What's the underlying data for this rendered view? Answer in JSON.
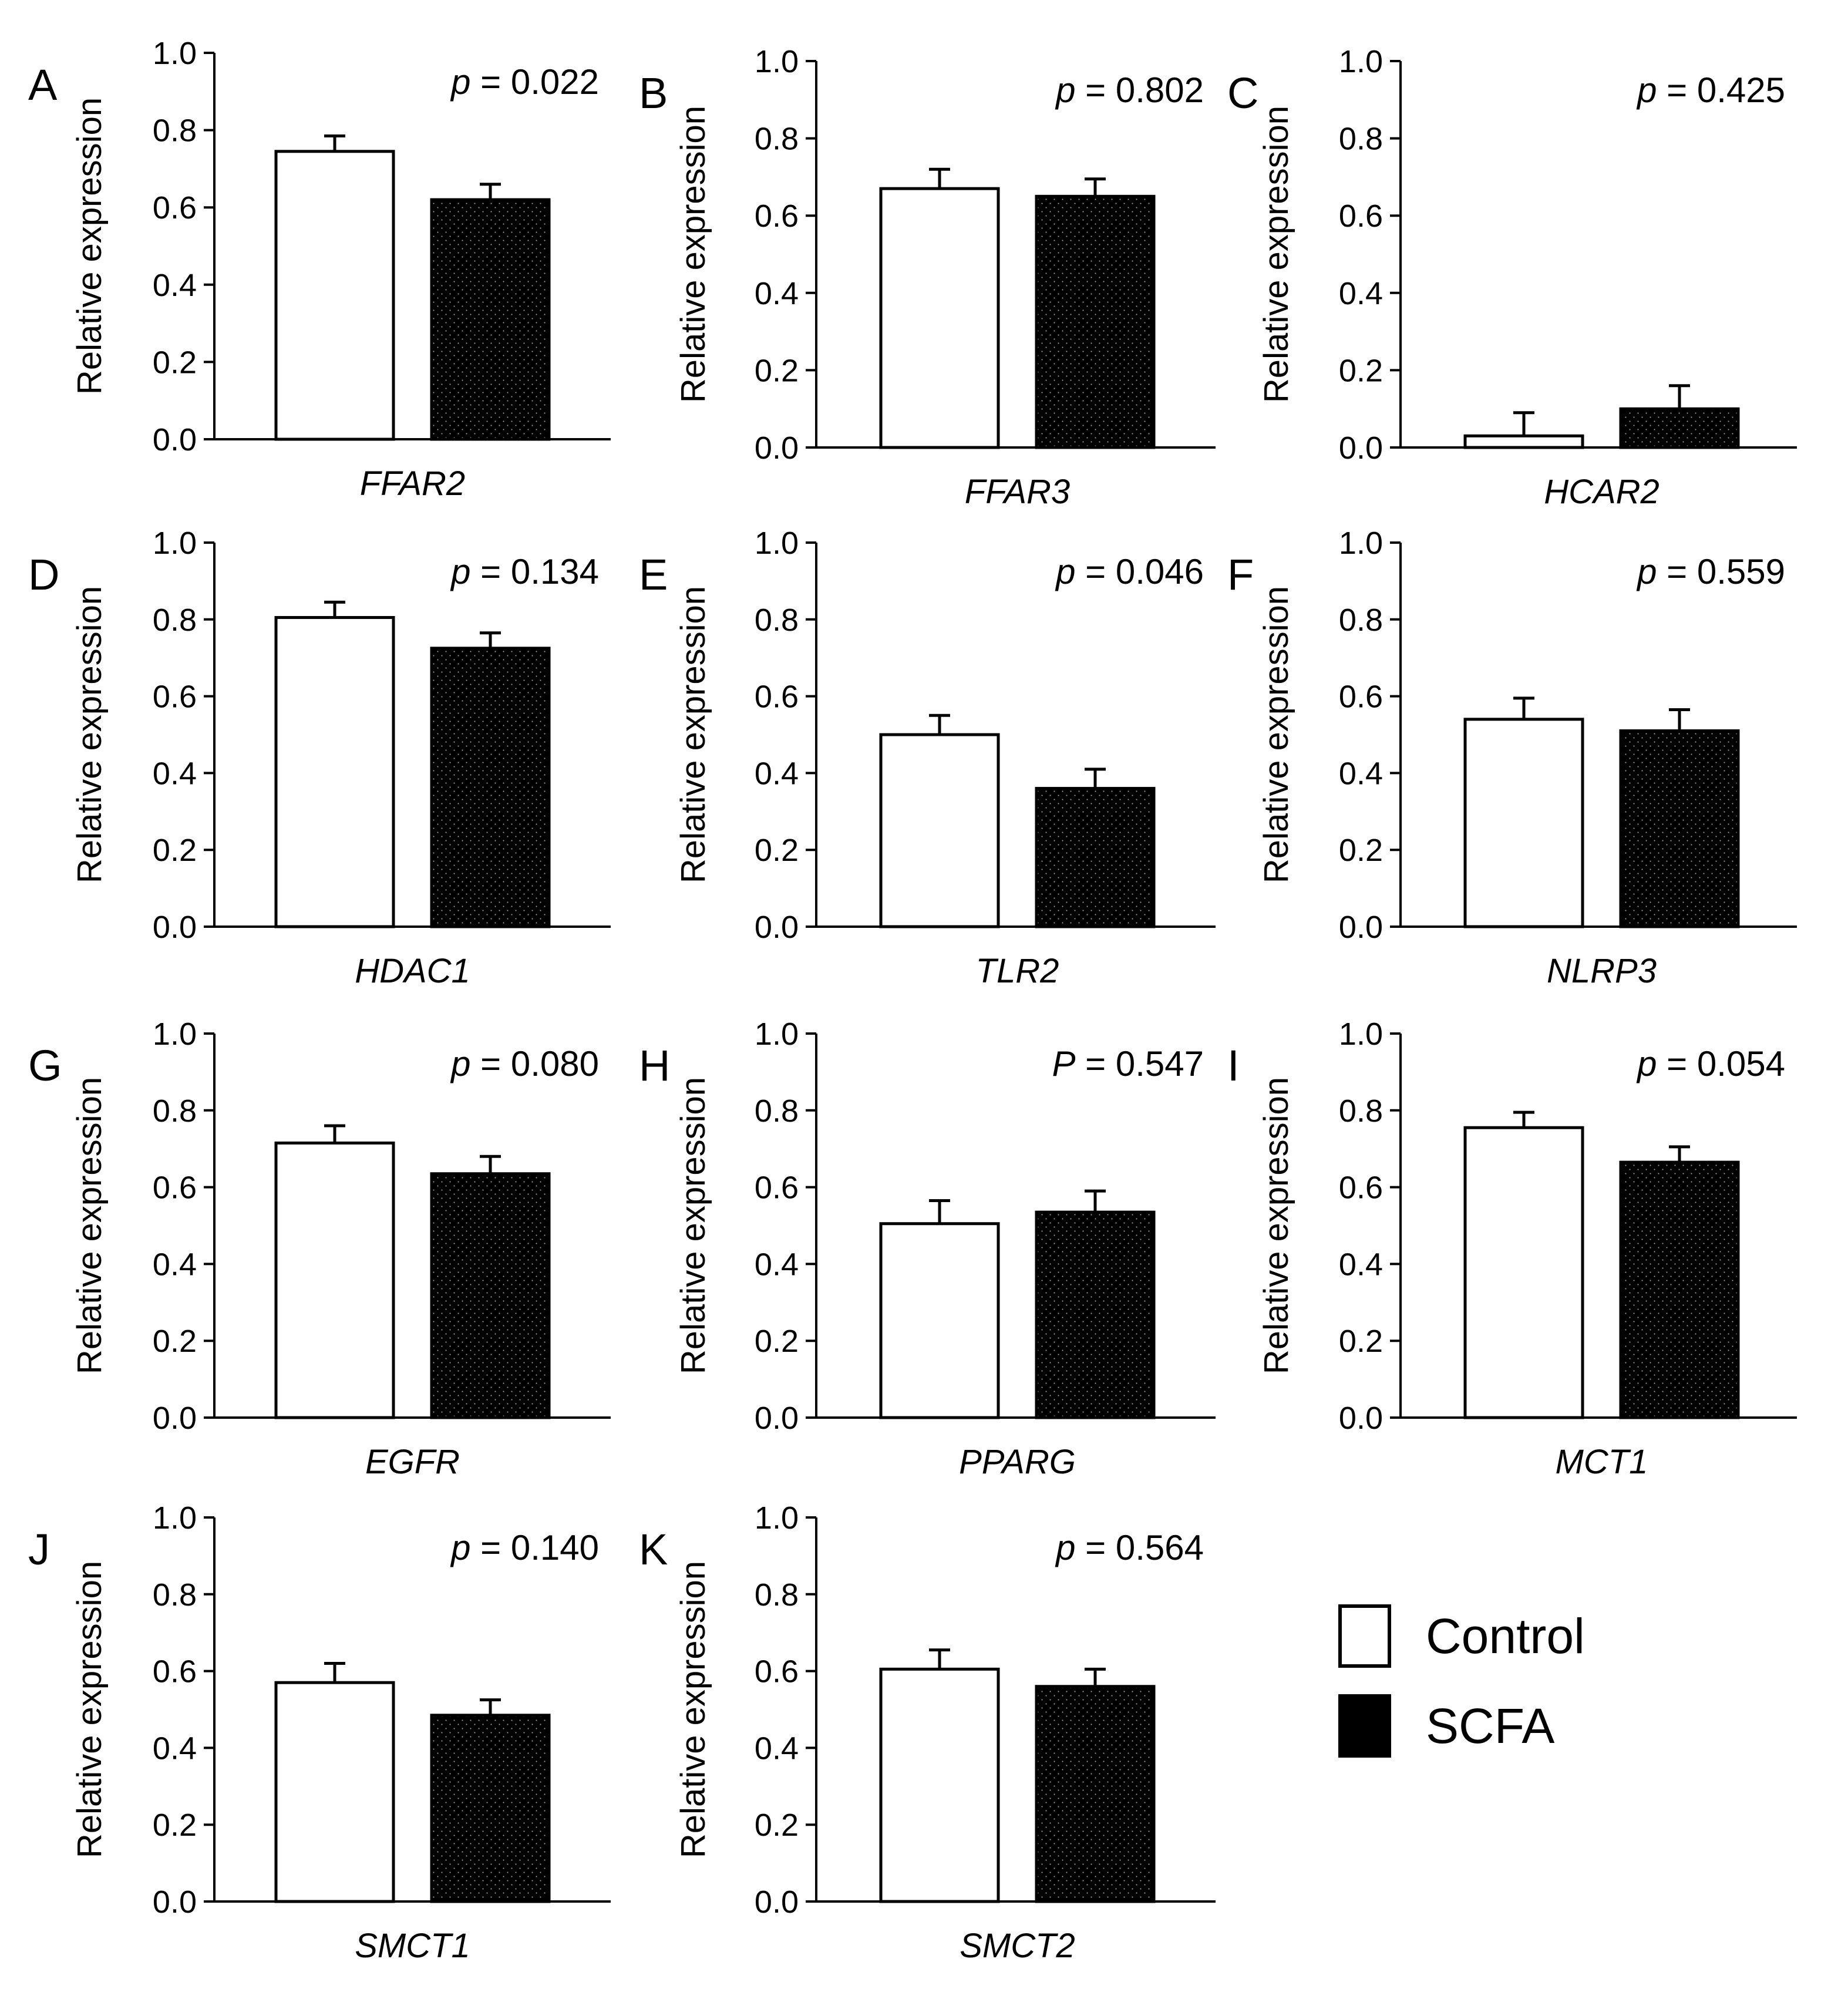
{
  "figure": {
    "series": [
      {
        "name": "Control",
        "color": "#ffffff"
      },
      {
        "name": "SCFA",
        "color": "#000000"
      }
    ],
    "legend": {
      "position": "bottom-right",
      "items": [
        "Control",
        "SCFA"
      ]
    },
    "ylabel": "Relative expression",
    "yticks": [
      "0.0",
      "0.2",
      "0.4",
      "0.6",
      "0.8",
      "1.0"
    ]
  },
  "chart_data": [
    {
      "panel": "A",
      "type": "bar",
      "title": "",
      "xlabel": "FFAR2",
      "ylabel": "Relative expression",
      "ylim": [
        0,
        1.0
      ],
      "p_prefix": "p",
      "p_value": "= 0.022",
      "series": [
        {
          "name": "Control",
          "values": [
            0.745
          ],
          "error": [
            0.04
          ]
        },
        {
          "name": "SCFA",
          "values": [
            0.62
          ],
          "error": [
            0.04
          ]
        }
      ]
    },
    {
      "panel": "B",
      "type": "bar",
      "title": "",
      "xlabel": "FFAR3",
      "ylabel": "Relative expression",
      "ylim": [
        0,
        1.0
      ],
      "p_prefix": "p",
      "p_value": "= 0.802",
      "series": [
        {
          "name": "Control",
          "values": [
            0.67
          ],
          "error": [
            0.05
          ]
        },
        {
          "name": "SCFA",
          "values": [
            0.65
          ],
          "error": [
            0.045
          ]
        }
      ]
    },
    {
      "panel": "C",
      "type": "bar",
      "title": "",
      "xlabel": "HCAR2",
      "ylabel": "Relative expression",
      "ylim": [
        0,
        1.0
      ],
      "p_prefix": "p",
      "p_value": "= 0.425",
      "series": [
        {
          "name": "Control",
          "values": [
            0.03
          ],
          "error": [
            0.06
          ]
        },
        {
          "name": "SCFA",
          "values": [
            0.1
          ],
          "error": [
            0.06
          ]
        }
      ]
    },
    {
      "panel": "D",
      "type": "bar",
      "title": "",
      "xlabel": "HDAC1",
      "ylabel": "Relative expression",
      "ylim": [
        0,
        1.0
      ],
      "p_prefix": "p",
      "p_value": "= 0.134",
      "series": [
        {
          "name": "Control",
          "values": [
            0.805
          ],
          "error": [
            0.04
          ]
        },
        {
          "name": "SCFA",
          "values": [
            0.725
          ],
          "error": [
            0.04
          ]
        }
      ]
    },
    {
      "panel": "E",
      "type": "bar",
      "title": "",
      "xlabel": "TLR2",
      "ylabel": "Relative expression",
      "ylim": [
        0,
        1.0
      ],
      "p_prefix": "p",
      "p_value": "= 0.046",
      "series": [
        {
          "name": "Control",
          "values": [
            0.5
          ],
          "error": [
            0.05
          ]
        },
        {
          "name": "SCFA",
          "values": [
            0.36
          ],
          "error": [
            0.05
          ]
        }
      ]
    },
    {
      "panel": "F",
      "type": "bar",
      "title": "",
      "xlabel": "NLRP3",
      "ylabel": "Relative expression",
      "ylim": [
        0,
        1.0
      ],
      "p_prefix": "p",
      "p_value": "= 0.559",
      "series": [
        {
          "name": "Control",
          "values": [
            0.54
          ],
          "error": [
            0.055
          ]
        },
        {
          "name": "SCFA",
          "values": [
            0.51
          ],
          "error": [
            0.055
          ]
        }
      ]
    },
    {
      "panel": "G",
      "type": "bar",
      "title": "",
      "xlabel": "EGFR",
      "ylabel": "Relative expression",
      "ylim": [
        0,
        1.0
      ],
      "p_prefix": "p",
      "p_value": "= 0.080",
      "series": [
        {
          "name": "Control",
          "values": [
            0.715
          ],
          "error": [
            0.045
          ]
        },
        {
          "name": "SCFA",
          "values": [
            0.635
          ],
          "error": [
            0.045
          ]
        }
      ]
    },
    {
      "panel": "H",
      "type": "bar",
      "title": "",
      "xlabel": "PPARG",
      "ylabel": "Relative expression",
      "ylim": [
        0,
        1.0
      ],
      "p_prefix": "P",
      "p_value": "= 0.547",
      "series": [
        {
          "name": "Control",
          "values": [
            0.505
          ],
          "error": [
            0.06
          ]
        },
        {
          "name": "SCFA",
          "values": [
            0.535
          ],
          "error": [
            0.055
          ]
        }
      ]
    },
    {
      "panel": "I",
      "type": "bar",
      "title": "",
      "xlabel": "MCT1",
      "ylabel": "Relative expression",
      "ylim": [
        0,
        1.0
      ],
      "p_prefix": "p",
      "p_value": "= 0.054",
      "series": [
        {
          "name": "Control",
          "values": [
            0.755
          ],
          "error": [
            0.04
          ]
        },
        {
          "name": "SCFA",
          "values": [
            0.665
          ],
          "error": [
            0.04
          ]
        }
      ]
    },
    {
      "panel": "J",
      "type": "bar",
      "title": "",
      "xlabel": "SMCT1",
      "ylabel": "Relative expression",
      "ylim": [
        0,
        1.0
      ],
      "p_prefix": "p",
      "p_value": "= 0.140",
      "series": [
        {
          "name": "Control",
          "values": [
            0.57
          ],
          "error": [
            0.05
          ]
        },
        {
          "name": "SCFA",
          "values": [
            0.485
          ],
          "error": [
            0.04
          ]
        }
      ]
    },
    {
      "panel": "K",
      "type": "bar",
      "title": "",
      "xlabel": "SMCT2",
      "ylabel": "Relative expression",
      "ylim": [
        0,
        1.0
      ],
      "p_prefix": "p",
      "p_value": "= 0.564",
      "series": [
        {
          "name": "Control",
          "values": [
            0.605
          ],
          "error": [
            0.05
          ]
        },
        {
          "name": "SCFA",
          "values": [
            0.56
          ],
          "error": [
            0.045
          ]
        }
      ]
    }
  ]
}
